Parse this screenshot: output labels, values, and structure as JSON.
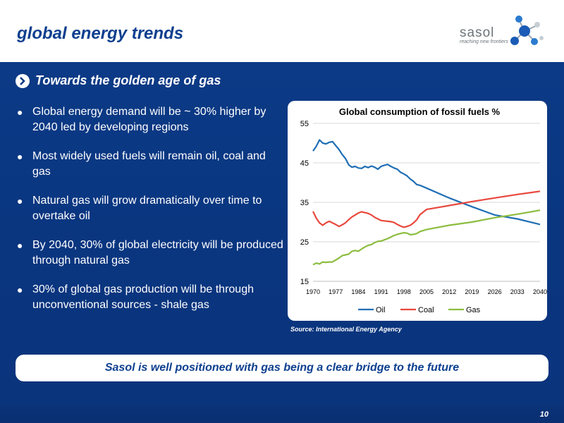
{
  "header": {
    "title": "global energy trends"
  },
  "logo": {
    "word": "sasol",
    "tagline": "reaching new frontiers"
  },
  "section": {
    "subtitle": "Towards the golden age of gas"
  },
  "bullets": [
    {
      "text": "Global energy demand will be ~ 30% higher by 2040 led by developing regions"
    },
    {
      "text": "Most widely used fuels will remain oil, coal and gas"
    },
    {
      "text": "Natural gas will grow dramatically over time to overtake oil"
    },
    {
      "text": "By 2040, 30% of global electricity will be produced through natural gas"
    },
    {
      "text": "30% of global gas production will be through unconventional sources - shale gas"
    }
  ],
  "bullet_marker": "●",
  "chart_data": {
    "type": "line",
    "title": "Global consumption of fossil fuels %",
    "xlabel": "",
    "ylabel": "",
    "ylim": [
      15,
      55
    ],
    "yticks": [
      15,
      25,
      35,
      45,
      55
    ],
    "xlim": [
      1970,
      2040
    ],
    "xticks": [
      1970,
      1977,
      1984,
      1991,
      1998,
      2005,
      2012,
      2019,
      2026,
      2033,
      2040
    ],
    "grid": true,
    "legend_position": "bottom",
    "series": [
      {
        "name": "Oil",
        "color": "#1f6eb5",
        "points": [
          [
            1970,
            48
          ],
          [
            1971,
            49.2
          ],
          [
            1972,
            50.8
          ],
          [
            1973,
            50
          ],
          [
            1974,
            49.8
          ],
          [
            1975,
            50.2
          ],
          [
            1976,
            50.4
          ],
          [
            1977,
            49.4
          ],
          [
            1978,
            48.4
          ],
          [
            1979,
            47.1
          ],
          [
            1980,
            46.1
          ],
          [
            1981,
            44.5
          ],
          [
            1982,
            43.9
          ],
          [
            1983,
            44.1
          ],
          [
            1984,
            43.7
          ],
          [
            1985,
            43.6
          ],
          [
            1986,
            44.1
          ],
          [
            1987,
            43.8
          ],
          [
            1988,
            44.2
          ],
          [
            1989,
            43.9
          ],
          [
            1990,
            43.4
          ],
          [
            1991,
            44.1
          ],
          [
            1992,
            44.4
          ],
          [
            1993,
            44.6
          ],
          [
            1994,
            44.1
          ],
          [
            1995,
            43.7
          ],
          [
            1996,
            43.4
          ],
          [
            1997,
            42.6
          ],
          [
            1998,
            42.2
          ],
          [
            1999,
            41.7
          ],
          [
            2000,
            40.9
          ],
          [
            2001,
            40.3
          ],
          [
            2002,
            39.5
          ],
          [
            2003,
            39.3
          ],
          [
            2005,
            38.6
          ],
          [
            2012,
            36.1
          ],
          [
            2019,
            33.9
          ],
          [
            2026,
            31.8
          ],
          [
            2033,
            30.8
          ],
          [
            2040,
            29.4
          ]
        ]
      },
      {
        "name": "Coal",
        "color": "#e8483d",
        "points": [
          [
            1970,
            32.7
          ],
          [
            1971,
            31
          ],
          [
            1972,
            29.8
          ],
          [
            1973,
            29.2
          ],
          [
            1974,
            29.8
          ],
          [
            1975,
            30.2
          ],
          [
            1976,
            29.8
          ],
          [
            1977,
            29.4
          ],
          [
            1978,
            28.9
          ],
          [
            1979,
            29.3
          ],
          [
            1980,
            29.8
          ],
          [
            1981,
            30.6
          ],
          [
            1982,
            31.3
          ],
          [
            1983,
            31.8
          ],
          [
            1984,
            32.3
          ],
          [
            1985,
            32.6
          ],
          [
            1986,
            32.4
          ],
          [
            1987,
            32.2
          ],
          [
            1988,
            31.8
          ],
          [
            1989,
            31.2
          ],
          [
            1990,
            30.8
          ],
          [
            1991,
            30.4
          ],
          [
            1992,
            30.3
          ],
          [
            1993,
            30.2
          ],
          [
            1994,
            30.1
          ],
          [
            1995,
            29.9
          ],
          [
            1996,
            29.4
          ],
          [
            1997,
            29
          ],
          [
            1998,
            28.7
          ],
          [
            1999,
            28.9
          ],
          [
            2000,
            29.2
          ],
          [
            2001,
            29.8
          ],
          [
            2002,
            30.6
          ],
          [
            2003,
            31.9
          ],
          [
            2005,
            33.2
          ],
          [
            2012,
            34.2
          ],
          [
            2019,
            35.2
          ],
          [
            2026,
            36.1
          ],
          [
            2033,
            37
          ],
          [
            2040,
            37.8
          ]
        ]
      },
      {
        "name": "Gas",
        "color": "#8cbd3f",
        "points": [
          [
            1970,
            19.2
          ],
          [
            1971,
            19.6
          ],
          [
            1972,
            19.4
          ],
          [
            1973,
            19.9
          ],
          [
            1974,
            19.8
          ],
          [
            1975,
            19.9
          ],
          [
            1976,
            19.9
          ],
          [
            1977,
            20.4
          ],
          [
            1978,
            20.9
          ],
          [
            1979,
            21.5
          ],
          [
            1980,
            21.7
          ],
          [
            1981,
            21.9
          ],
          [
            1982,
            22.6
          ],
          [
            1983,
            22.8
          ],
          [
            1984,
            22.6
          ],
          [
            1985,
            23.2
          ],
          [
            1986,
            23.7
          ],
          [
            1987,
            24.1
          ],
          [
            1988,
            24.3
          ],
          [
            1989,
            24.8
          ],
          [
            1990,
            25.1
          ],
          [
            1991,
            25.2
          ],
          [
            1992,
            25.5
          ],
          [
            1993,
            25.8
          ],
          [
            1994,
            26.2
          ],
          [
            1995,
            26.6
          ],
          [
            1996,
            26.9
          ],
          [
            1997,
            27.1
          ],
          [
            1998,
            27.3
          ],
          [
            1999,
            27.2
          ],
          [
            2000,
            26.8
          ],
          [
            2001,
            26.9
          ],
          [
            2002,
            27.1
          ],
          [
            2003,
            27.6
          ],
          [
            2005,
            28.1
          ],
          [
            2012,
            29.2
          ],
          [
            2019,
            30
          ],
          [
            2026,
            31.1
          ],
          [
            2033,
            32
          ],
          [
            2040,
            33
          ]
        ]
      }
    ]
  },
  "source": "Source: International Energy Agency",
  "callout": "Sasol is well positioned with gas being a clear bridge to the future",
  "page_number": "10"
}
